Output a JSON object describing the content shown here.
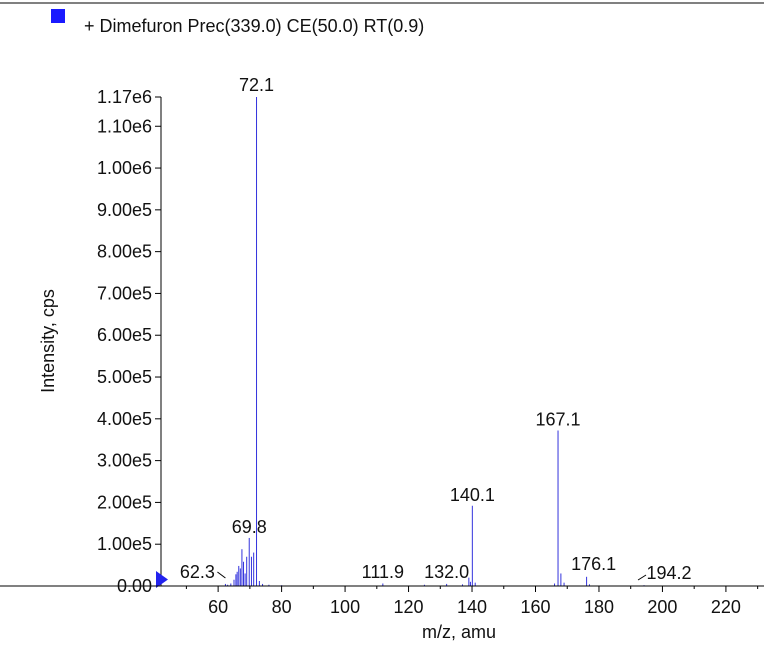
{
  "chart_data": {
    "type": "bar",
    "title": "+ Dimefuron Prec(339.0) CE(50.0) RT(0.9)",
    "xlabel": "m/z, amu",
    "ylabel": "Intensity, cps",
    "xlim": [
      42,
      232
    ],
    "ylim": [
      0,
      1170000
    ],
    "x_ticks": [
      "60",
      "80",
      "100",
      "120",
      "140",
      "160",
      "180",
      "200",
      "220"
    ],
    "y_ticks": [
      "0.00",
      "1.00e5",
      "2.00e5",
      "3.00e5",
      "4.00e5",
      "5.00e5",
      "6.00e5",
      "7.00e5",
      "8.00e5",
      "9.00e5",
      "1.00e6",
      "1.10e6",
      "1.17e6"
    ],
    "y_tick_values": [
      0,
      100000,
      200000,
      300000,
      400000,
      500000,
      600000,
      700000,
      800000,
      900000,
      1000000,
      1100000,
      1170000
    ],
    "series_color": "#3333dd",
    "legend_color": "#1a1aff",
    "peaks": [
      {
        "x": 62.3,
        "y": 5000
      },
      {
        "x": 63.0,
        "y": 3000
      },
      {
        "x": 64.0,
        "y": 6000
      },
      {
        "x": 65.0,
        "y": 15000
      },
      {
        "x": 65.6,
        "y": 28000
      },
      {
        "x": 66.0,
        "y": 34000
      },
      {
        "x": 66.5,
        "y": 48000
      },
      {
        "x": 67.0,
        "y": 42000
      },
      {
        "x": 67.5,
        "y": 88000
      },
      {
        "x": 68.0,
        "y": 58000
      },
      {
        "x": 68.5,
        "y": 30000
      },
      {
        "x": 69.0,
        "y": 70000
      },
      {
        "x": 69.8,
        "y": 115000
      },
      {
        "x": 70.5,
        "y": 70000
      },
      {
        "x": 71.2,
        "y": 80000
      },
      {
        "x": 72.1,
        "y": 1170000
      },
      {
        "x": 73.0,
        "y": 12000
      },
      {
        "x": 74.0,
        "y": 5000
      },
      {
        "x": 76.0,
        "y": 3000
      },
      {
        "x": 80.0,
        "y": 2000
      },
      {
        "x": 111.9,
        "y": 6000
      },
      {
        "x": 125.0,
        "y": 3000
      },
      {
        "x": 132.0,
        "y": 5000
      },
      {
        "x": 137.0,
        "y": 4000
      },
      {
        "x": 139.0,
        "y": 20000
      },
      {
        "x": 139.5,
        "y": 10000
      },
      {
        "x": 140.1,
        "y": 192000
      },
      {
        "x": 141.0,
        "y": 8000
      },
      {
        "x": 166.0,
        "y": 6000
      },
      {
        "x": 167.1,
        "y": 372000
      },
      {
        "x": 168.0,
        "y": 30000
      },
      {
        "x": 169.0,
        "y": 8000
      },
      {
        "x": 176.1,
        "y": 22000
      },
      {
        "x": 177.0,
        "y": 4000
      },
      {
        "x": 194.2,
        "y": 2000
      }
    ],
    "peak_labels": [
      {
        "x": 72.1,
        "text": "72.1"
      },
      {
        "x": 69.8,
        "text": "69.8"
      },
      {
        "x": 62.3,
        "text": "62.3"
      },
      {
        "x": 111.9,
        "text": "111.9"
      },
      {
        "x": 132.0,
        "text": "132.0"
      },
      {
        "x": 140.1,
        "text": "140.1"
      },
      {
        "x": 167.1,
        "text": "167.1"
      },
      {
        "x": 176.1,
        "text": "176.1"
      },
      {
        "x": 194.2,
        "text": "194.2"
      }
    ]
  }
}
